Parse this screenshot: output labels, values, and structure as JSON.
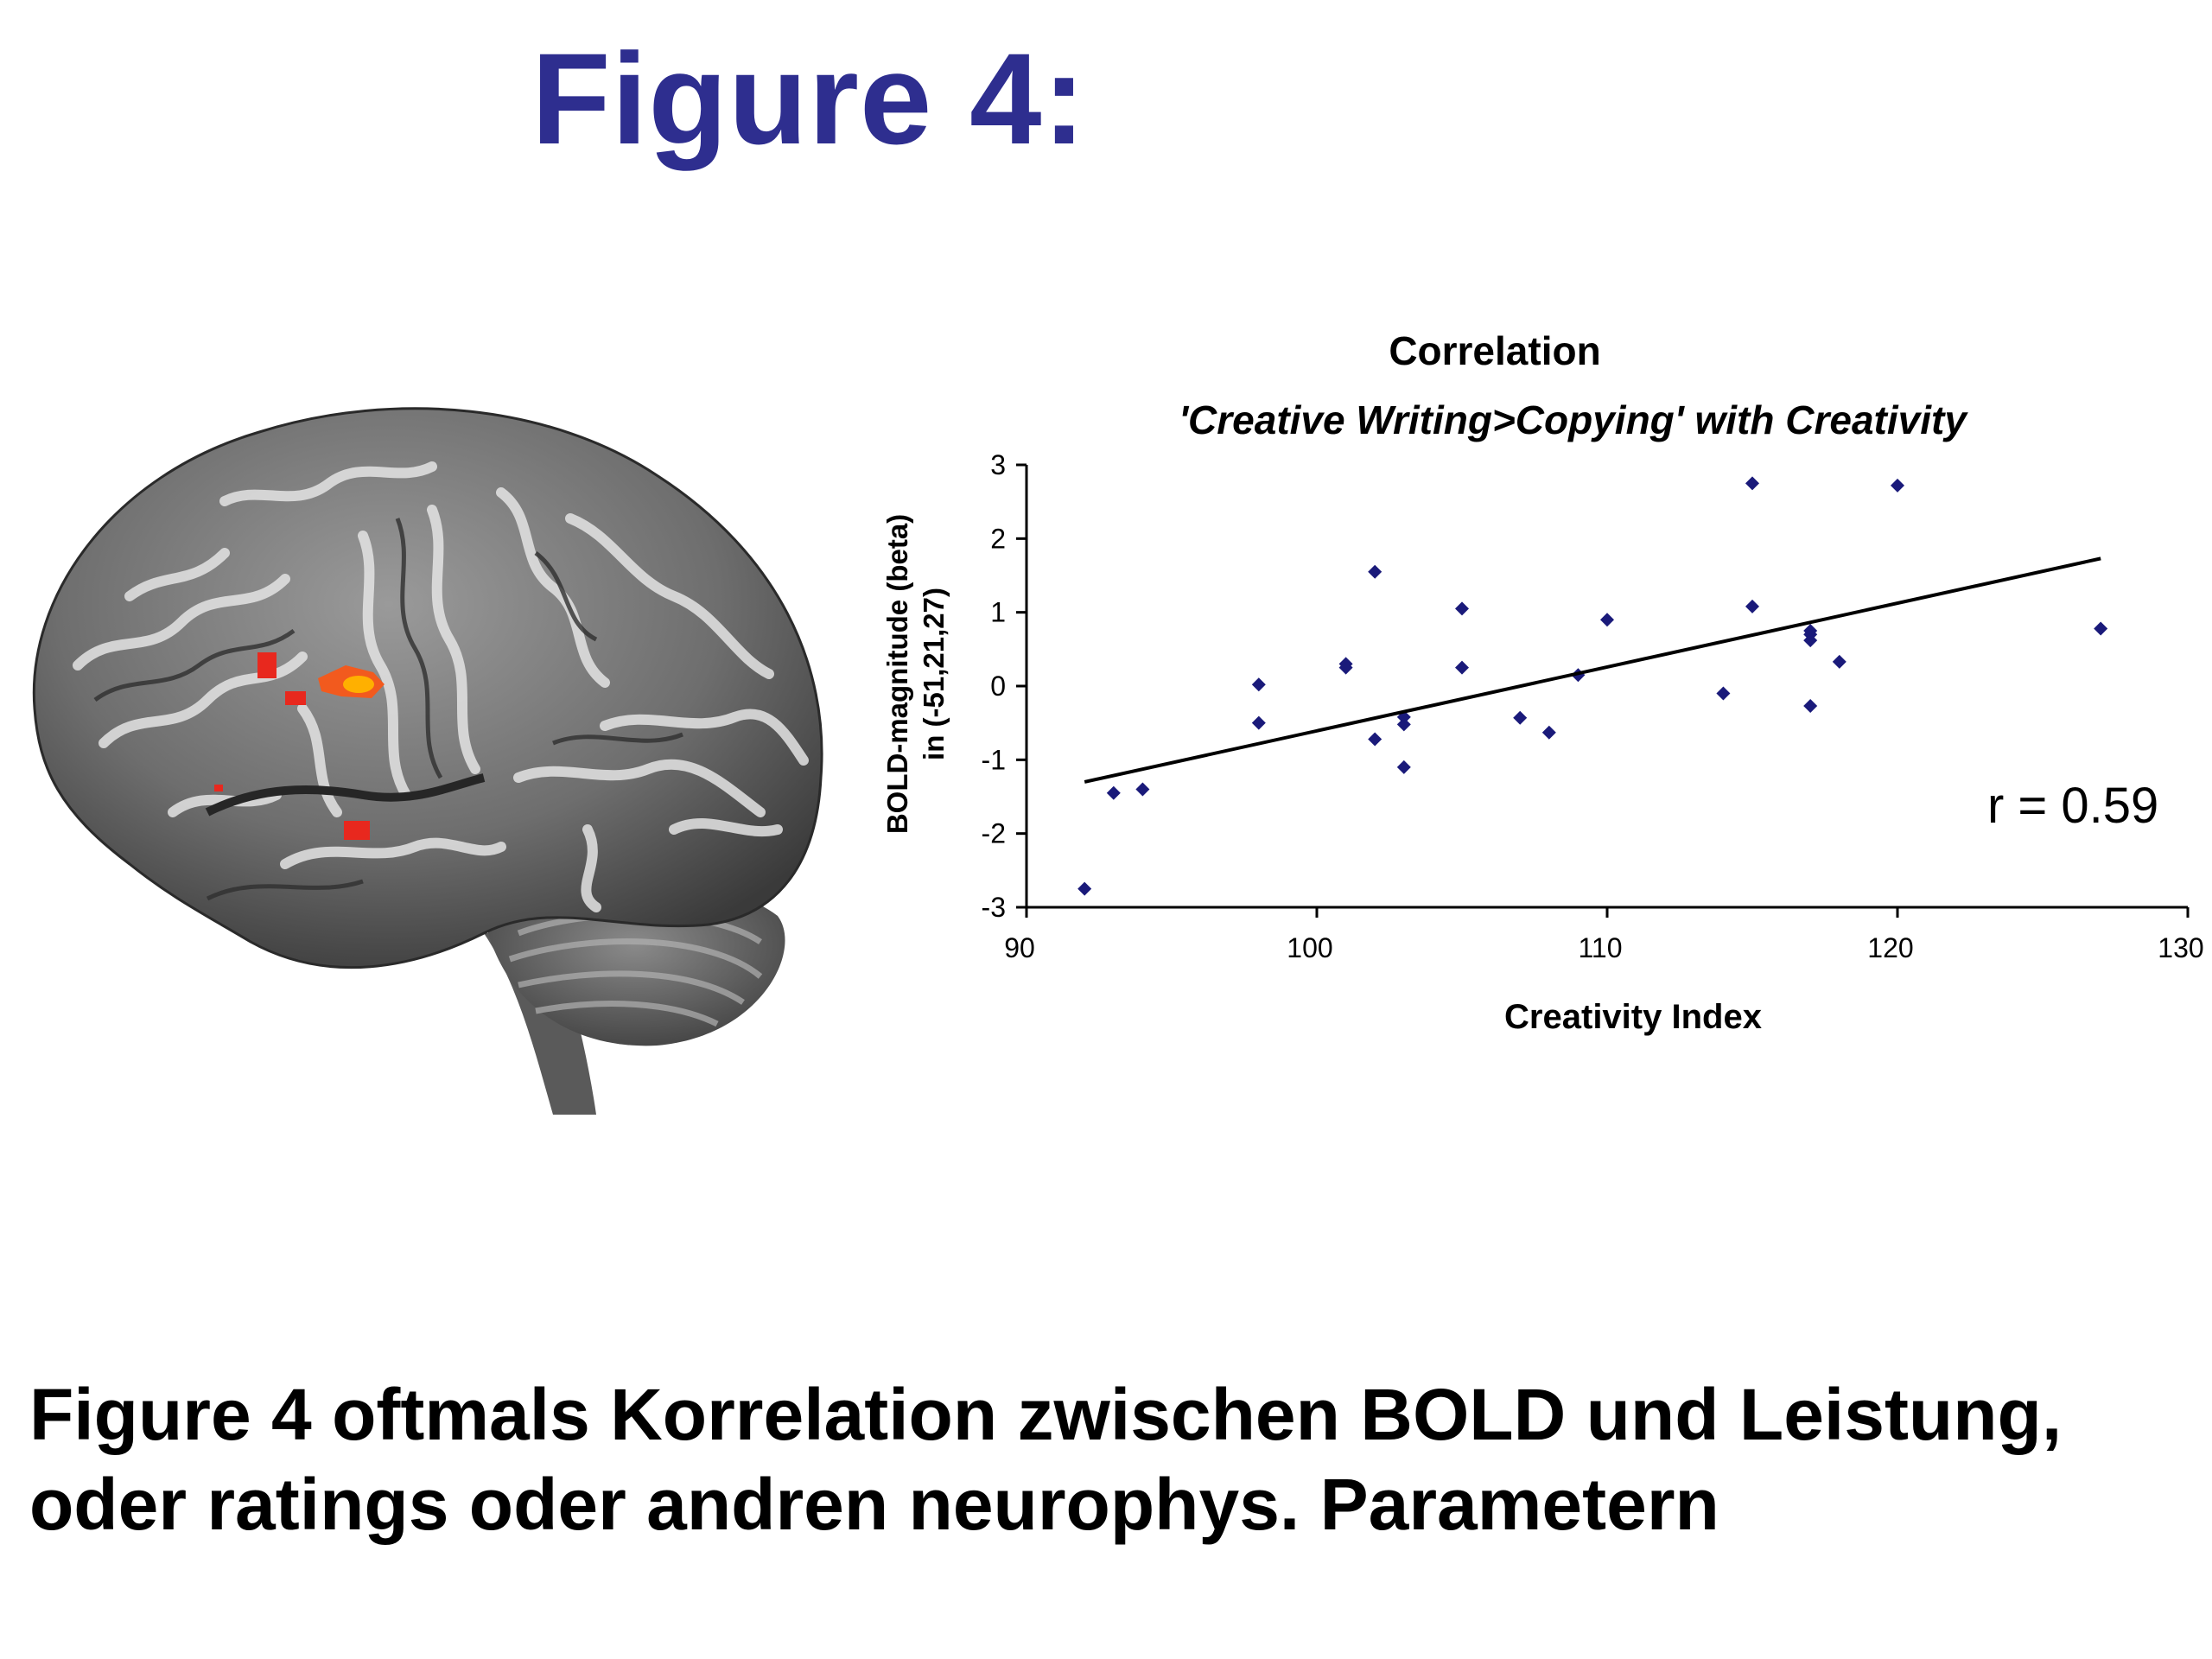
{
  "slide_title": "Figure 4:",
  "caption": {
    "line1": "Figure 4 oftmals Korrelation zwischen BOLD und Leistung,",
    "line2": "oder ratings oder andren neurophys. Parametern"
  },
  "brain_image": {
    "description_icon": "brain-render-icon",
    "activation_color": "#e8281e",
    "peak_color": "#ffb000"
  },
  "chart_data": {
    "type": "scatter",
    "title": "Correlation",
    "subtitle": "'Creative Writing>Copying' with Creativity",
    "xlabel": "Creativity Index",
    "ylabel_line1": "BOLD-magnitude (beta)",
    "ylabel_line2": "in (-51,21,27)",
    "xlim": [
      90,
      130
    ],
    "ylim": [
      -3,
      3
    ],
    "xticks": [
      90,
      100,
      110,
      120,
      130
    ],
    "yticks": [
      3,
      2,
      1,
      0,
      -1,
      -2,
      -3
    ],
    "grid": false,
    "annotation": "r = 0.59",
    "point_color": "#1a1a7a",
    "x": [
      92,
      93,
      94,
      98,
      98,
      101,
      101,
      102,
      102,
      103,
      103,
      103,
      105,
      105,
      107,
      108,
      109,
      110,
      114,
      115,
      115,
      117,
      117,
      117,
      117,
      118,
      120,
      127
    ],
    "y": [
      -2.75,
      -1.45,
      -1.4,
      0.02,
      -0.5,
      0.3,
      0.25,
      1.55,
      -0.72,
      -0.42,
      -0.52,
      -1.1,
      1.05,
      0.25,
      -0.43,
      -0.63,
      0.15,
      0.9,
      -0.1,
      2.75,
      1.08,
      0.75,
      0.62,
      -0.27,
      0.7,
      0.33,
      2.72,
      0.78
    ],
    "trendline": {
      "x": [
        92,
        127
      ],
      "y": [
        -1.3,
        1.73
      ]
    }
  }
}
